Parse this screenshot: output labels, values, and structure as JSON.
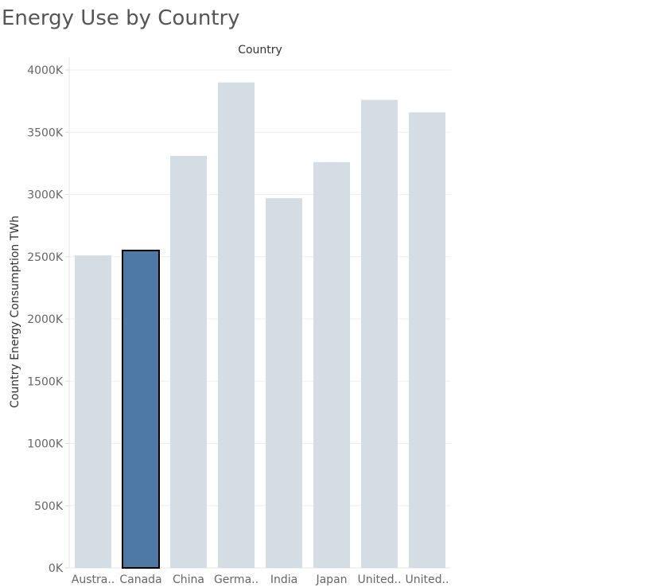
{
  "chart_data": {
    "type": "bar",
    "title": "Energy Use by Country",
    "column_header": "Country",
    "ylabel": "Country Energy Consumption TWh",
    "ylim": [
      0,
      4000000
    ],
    "yticks": [
      0,
      500000,
      1000000,
      1500000,
      2000000,
      2500000,
      3000000,
      3500000,
      4000000
    ],
    "ytick_labels": [
      "0K",
      "500K",
      "1000K",
      "1500K",
      "2000K",
      "2500K",
      "3000K",
      "3500K",
      "4000K"
    ],
    "categories": [
      "Austra..",
      "Canada",
      "China",
      "Germa..",
      "India",
      "Japan",
      "United..",
      "United.."
    ],
    "values": [
      2510000,
      2550000,
      3310000,
      3900000,
      2970000,
      3260000,
      3760000,
      3660000
    ],
    "highlighted_index": 1,
    "grid": true,
    "legend": "none",
    "colors": {
      "bar": "#d4dce4",
      "highlight": "#4e79a7",
      "highlight_stroke": "#000000",
      "grid": "#eeeeee"
    }
  }
}
